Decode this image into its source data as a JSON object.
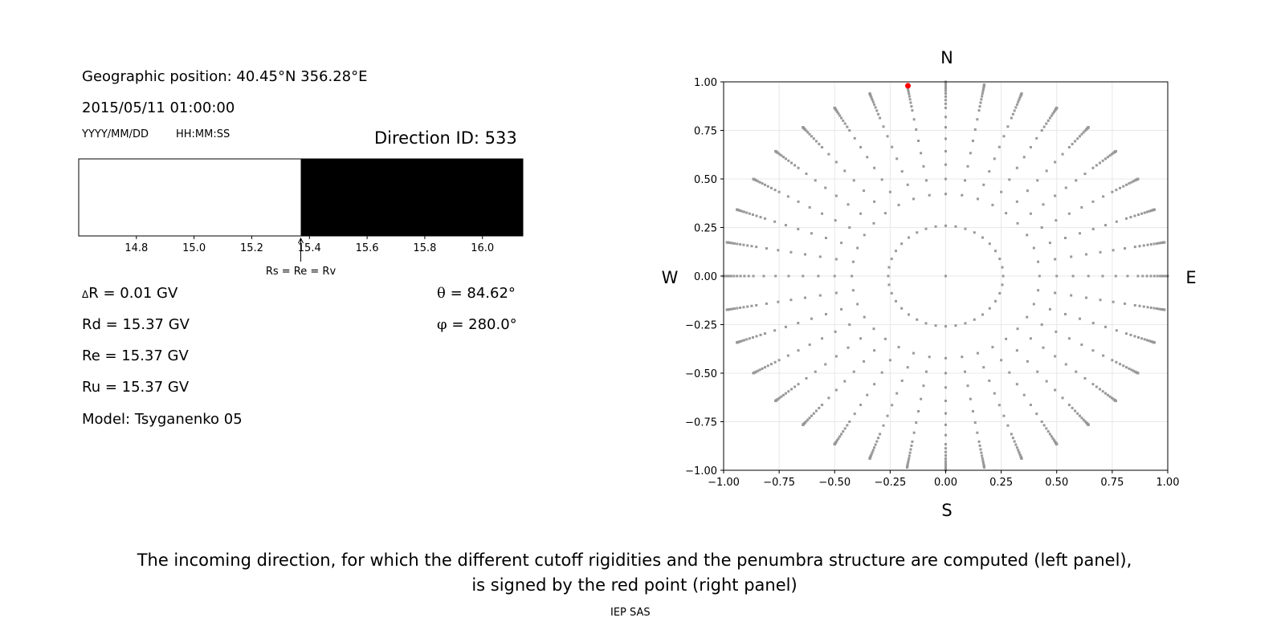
{
  "left_panel": {
    "geo_position": "Geographic position: 40.45°N 356.28°E",
    "datetime": "2015/05/11 01:00:00",
    "date_format": "YYYY/MM/DD",
    "time_format": "HH:MM:SS",
    "direction_id": "Direction ID: 533",
    "delta_r_symbol": "Δ",
    "delta_r": "R = 0.01 GV",
    "rd": "Rd = 15.37 GV",
    "re": "Re = 15.37 GV",
    "ru": "Ru = 15.37 GV",
    "model": "Model: Tsyganenko 05",
    "theta_symbol": "θ",
    "theta": " = 84.62°",
    "phi_symbol": "φ",
    "phi": " = 280.0°"
  },
  "chart_data": [
    {
      "type": "bar",
      "description_kind": "penumbra",
      "xlim": [
        14.6,
        16.14
      ],
      "xticks": [
        "14.8",
        "15.0",
        "15.2",
        "15.4",
        "15.6",
        "15.8",
        "16.0"
      ],
      "segments": [
        {
          "from": 14.6,
          "to": 15.37,
          "state": "allowed",
          "color": "#ffffff"
        },
        {
          "from": 15.37,
          "to": 16.14,
          "state": "forbidden",
          "color": "#000000"
        }
      ],
      "annotation": {
        "text": "Rs = Re = Rv",
        "x": 15.37
      }
    },
    {
      "type": "scatter",
      "xlim": [
        -1.0,
        1.0
      ],
      "ylim": [
        -1.0,
        1.0
      ],
      "xticks": [
        "−1.00",
        "−0.75",
        "−0.50",
        "−0.25",
        "0.00",
        "0.25",
        "0.50",
        "0.75",
        "1.00"
      ],
      "yticks": [
        "1.00",
        "0.75",
        "0.50",
        "0.25",
        "0.00",
        "−0.25",
        "−0.50",
        "−0.75",
        "−1.00"
      ],
      "grid": true,
      "compass": {
        "north": "N",
        "south": "S",
        "west": "W",
        "east": "E"
      },
      "point_color": "#999999",
      "highlight_color": "#ff0000",
      "directions": {
        "azimuth_step_deg": 10,
        "inner_ring_zenith_deg": 15,
        "line_zenith_deg": [
          25,
          30,
          35,
          40,
          45,
          50,
          55,
          60,
          62.5,
          65,
          67.5,
          70,
          72.5,
          75,
          77.5,
          80,
          82,
          84,
          85,
          86,
          87,
          88,
          89,
          90
        ]
      },
      "highlight_point": {
        "x": -0.17,
        "y": 0.98
      }
    }
  ],
  "caption": {
    "line1": "The incoming direction, for which the different cutoff rigidities and the penumbra structure are computed (left panel),",
    "line2": "is signed by the red point (right panel)"
  },
  "footer": "IEP SAS"
}
